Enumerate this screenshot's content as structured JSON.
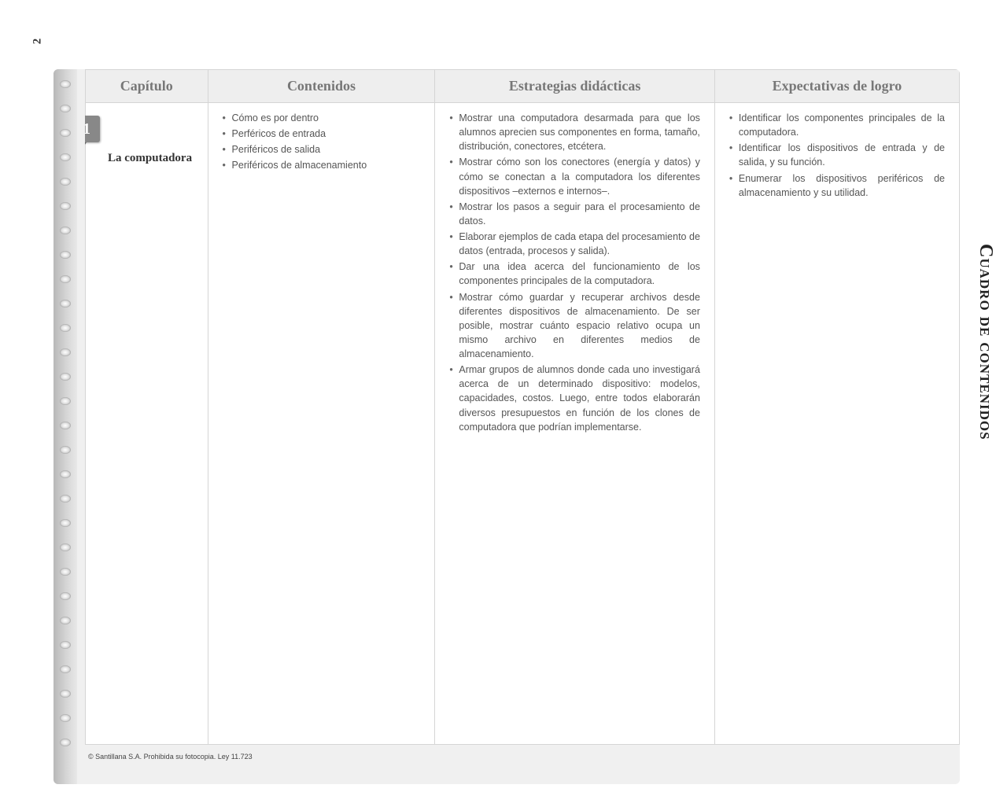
{
  "page_number": "2",
  "side_title": "Cuadro de contenidos",
  "headers": {
    "col1": "Capítulo",
    "col2": "Contenidos",
    "col3": "Estrategias didácticas",
    "col4": "Expectativas de logro"
  },
  "chapter": {
    "number": "1",
    "title": "La computadora"
  },
  "contenidos": [
    "Cómo es por dentro",
    "Perféricos de entrada",
    "Periféricos de salida",
    "Periféricos de almacenamiento"
  ],
  "estrategias": [
    "Mostrar una computadora desarmada para que los alumnos aprecien sus componentes en forma, tamaño, distribución, conectores, etcétera.",
    "Mostrar cómo son los conectores (energía y datos) y cómo se conectan a la computadora los diferentes dispositivos –externos e internos–.",
    "Mostrar los pasos a seguir para el procesamiento de datos.",
    "Elaborar ejemplos de cada etapa del procesamiento de datos (entrada, procesos y salida).",
    "Dar una idea acerca del funcionamiento de los componentes principales de la computadora.",
    "Mostrar cómo guardar y recuperar archivos desde diferentes dispositivos de almacenamiento. De ser posible, mostrar cuánto espacio relativo ocupa un mismo archivo en diferentes medios de almacenamiento.",
    "Armar grupos de alumnos donde cada uno investigará acerca de un determinado dispositivo: modelos, capacidades, costos. Luego, entre todos elaborarán diversos presupuestos en función de los clones de computadora que podrían implementarse."
  ],
  "expectativas": [
    "Identificar los componentes principales de la computadora.",
    "Identificar los dispositivos de entrada y de salida, y su función.",
    "Enumerar los dispositivos periféricos de almacenamiento y su utilidad."
  ],
  "copyright": "© Santillana S.A. Prohibida su fotocopia. Ley 11.723",
  "colors": {
    "header_bg": "#eeeeee",
    "header_text": "#777777",
    "border": "#d5d5d5",
    "body_text": "#555555",
    "badge_bg": "#888888"
  }
}
